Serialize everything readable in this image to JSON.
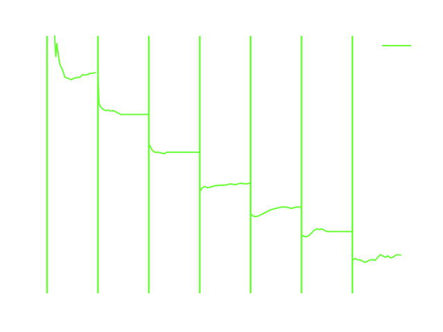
{
  "chart_data": {
    "type": "line",
    "title": "",
    "xlabel": "",
    "ylabel": "",
    "grid": false,
    "axes_visible": false,
    "legend_position": "top-right",
    "xlim": [
      0,
      7.4
    ],
    "ylim": [
      0,
      1
    ],
    "series": [
      {
        "color": "#66ff33",
        "segments": [
          {
            "points": [
              [
                0.15,
                1.0
              ],
              [
                0.17,
                0.92
              ],
              [
                0.19,
                0.97
              ],
              [
                0.22,
                0.93
              ],
              [
                0.25,
                0.89
              ],
              [
                0.3,
                0.87
              ],
              [
                0.35,
                0.84
              ],
              [
                0.42,
                0.835
              ],
              [
                0.48,
                0.83
              ],
              [
                0.52,
                0.835
              ],
              [
                0.58,
                0.838
              ],
              [
                0.65,
                0.84
              ],
              [
                0.7,
                0.85
              ],
              [
                0.75,
                0.848
              ],
              [
                0.8,
                0.85
              ],
              [
                0.85,
                0.855
              ],
              [
                0.9,
                0.855
              ],
              [
                0.95,
                0.858
              ]
            ]
          },
          {
            "points": [
              [
                1.0,
                0.84
              ],
              [
                1.02,
                0.74
              ],
              [
                1.05,
                0.725
              ],
              [
                1.1,
                0.715
              ],
              [
                1.15,
                0.71
              ],
              [
                1.2,
                0.712
              ],
              [
                1.25,
                0.708
              ],
              [
                1.3,
                0.71
              ],
              [
                1.35,
                0.705
              ],
              [
                1.4,
                0.7
              ],
              [
                1.45,
                0.695
              ],
              [
                1.5,
                0.695
              ],
              [
                1.6,
                0.695
              ],
              [
                1.7,
                0.695
              ],
              [
                1.8,
                0.695
              ],
              [
                1.9,
                0.695
              ],
              [
                2.0,
                0.695
              ]
            ]
          },
          {
            "points": [
              [
                2.0,
                0.58
              ],
              [
                2.03,
                0.57
              ],
              [
                2.07,
                0.555
              ],
              [
                2.12,
                0.548
              ],
              [
                2.18,
                0.548
              ],
              [
                2.25,
                0.545
              ],
              [
                2.3,
                0.542
              ],
              [
                2.35,
                0.548
              ],
              [
                2.45,
                0.548
              ],
              [
                2.6,
                0.548
              ],
              [
                2.75,
                0.548
              ],
              [
                2.9,
                0.548
              ],
              [
                3.0,
                0.548
              ]
            ]
          },
          {
            "points": [
              [
                3.02,
                0.4
              ],
              [
                3.05,
                0.41
              ],
              [
                3.1,
                0.415
              ],
              [
                3.15,
                0.41
              ],
              [
                3.2,
                0.412
              ],
              [
                3.3,
                0.418
              ],
              [
                3.4,
                0.42
              ],
              [
                3.5,
                0.42
              ],
              [
                3.6,
                0.425
              ],
              [
                3.7,
                0.422
              ],
              [
                3.8,
                0.428
              ],
              [
                3.9,
                0.425
              ],
              [
                4.0,
                0.428
              ]
            ]
          },
          {
            "points": [
              [
                4.0,
                0.31
              ],
              [
                4.05,
                0.3
              ],
              [
                4.1,
                0.298
              ],
              [
                4.15,
                0.3
              ],
              [
                4.2,
                0.305
              ],
              [
                4.25,
                0.31
              ],
              [
                4.3,
                0.315
              ],
              [
                4.4,
                0.325
              ],
              [
                4.5,
                0.33
              ],
              [
                4.6,
                0.335
              ],
              [
                4.7,
                0.335
              ],
              [
                4.8,
                0.33
              ],
              [
                4.9,
                0.335
              ],
              [
                5.0,
                0.335
              ]
            ]
          },
          {
            "points": [
              [
                5.02,
                0.225
              ],
              [
                5.05,
                0.22
              ],
              [
                5.1,
                0.22
              ],
              [
                5.15,
                0.225
              ],
              [
                5.2,
                0.235
              ],
              [
                5.25,
                0.245
              ],
              [
                5.3,
                0.25
              ],
              [
                5.35,
                0.248
              ],
              [
                5.4,
                0.25
              ],
              [
                5.45,
                0.245
              ],
              [
                5.5,
                0.24
              ],
              [
                5.6,
                0.24
              ],
              [
                5.7,
                0.24
              ],
              [
                5.8,
                0.24
              ],
              [
                5.9,
                0.24
              ],
              [
                6.0,
                0.24
              ]
            ]
          },
          {
            "points": [
              [
                6.02,
                0.13
              ],
              [
                6.05,
                0.135
              ],
              [
                6.1,
                0.13
              ],
              [
                6.15,
                0.13
              ],
              [
                6.2,
                0.125
              ],
              [
                6.25,
                0.12
              ],
              [
                6.3,
                0.125
              ],
              [
                6.35,
                0.13
              ],
              [
                6.4,
                0.13
              ],
              [
                6.45,
                0.128
              ],
              [
                6.5,
                0.14
              ],
              [
                6.55,
                0.15
              ],
              [
                6.6,
                0.145
              ],
              [
                6.65,
                0.14
              ],
              [
                6.7,
                0.145
              ],
              [
                6.75,
                0.138
              ],
              [
                6.8,
                0.14
              ],
              [
                6.85,
                0.148
              ],
              [
                6.9,
                0.15
              ],
              [
                6.95,
                0.148
              ]
            ]
          }
        ],
        "spikes_x": [
          0.0,
          1.0,
          2.0,
          3.0,
          4.0,
          5.0,
          6.0
        ]
      }
    ],
    "legend_entries": [
      {
        "label": "",
        "color": "#66ff33"
      }
    ]
  }
}
